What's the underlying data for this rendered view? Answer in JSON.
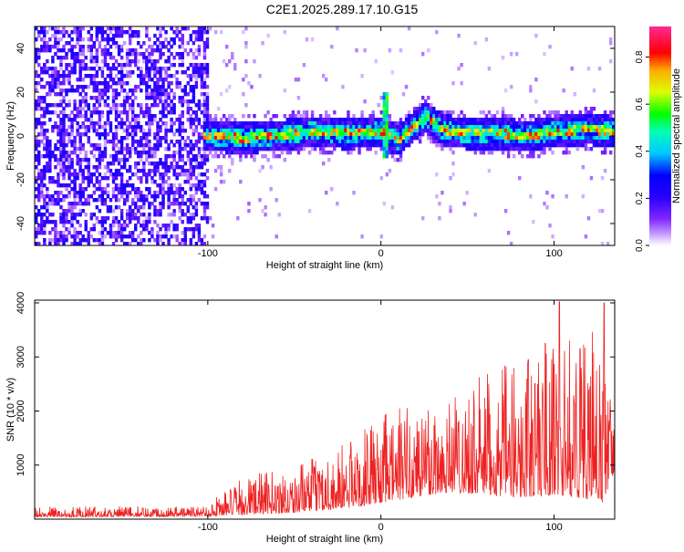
{
  "title": "C2E1.2025.289.17.10.G15",
  "chart_data": [
    {
      "type": "heatmap",
      "xlabel": "Height of straight line (km)",
      "ylabel": "Frequency (Hz)",
      "xlim": [
        -200,
        135
      ],
      "ylim": [
        -50,
        50
      ],
      "xticks": [
        -100,
        0,
        100
      ],
      "yticks": [
        -40,
        -20,
        0,
        20,
        40
      ],
      "colorbar": {
        "label": "Normalized spectral amplitude",
        "range": [
          0,
          0.93
        ],
        "ticks": [
          0.0,
          0.2,
          0.4,
          0.6,
          0.8
        ],
        "colormap": [
          "#ffffff",
          "#a050ff",
          "#6a00ff",
          "#0000ff",
          "#00ffff",
          "#00ff00",
          "#ffff00",
          "#ff0000",
          "#ff33aa"
        ]
      },
      "features": {
        "noise_region_x": [
          -200,
          -100
        ],
        "band_center_hz": [
          {
            "x": -100,
            "hz": 0
          },
          {
            "x": -80,
            "hz": -1
          },
          {
            "x": -60,
            "hz": 0
          },
          {
            "x": -40,
            "hz": 2
          },
          {
            "x": -20,
            "hz": 1
          },
          {
            "x": 0,
            "hz": 2
          },
          {
            "x": 5,
            "hz": 0
          },
          {
            "x": 10,
            "hz": -2
          },
          {
            "x": 20,
            "hz": 5
          },
          {
            "x": 26,
            "hz": 9
          },
          {
            "x": 35,
            "hz": 3
          },
          {
            "x": 50,
            "hz": 1
          },
          {
            "x": 70,
            "hz": 1
          },
          {
            "x": 85,
            "hz": 0
          },
          {
            "x": 100,
            "hz": 2
          },
          {
            "x": 120,
            "hz": 3
          },
          {
            "x": 135,
            "hz": 2
          }
        ],
        "spike_x": 3
      }
    },
    {
      "type": "line",
      "xlabel": "Height of straight line (km)",
      "ylabel": "SNR (10 * v/v)",
      "xlim": [
        -200,
        135
      ],
      "ylim": [
        0,
        4050
      ],
      "xticks": [
        -100,
        0,
        100
      ],
      "yticks": [
        1000,
        2000,
        3000,
        4000
      ],
      "color": "#ee2222",
      "envelope": [
        {
          "x": -200,
          "base": 40,
          "peak": 230
        },
        {
          "x": -100,
          "base": 50,
          "peak": 250
        },
        {
          "x": -95,
          "base": 60,
          "peak": 450
        },
        {
          "x": -75,
          "base": 90,
          "peak": 850
        },
        {
          "x": -50,
          "base": 120,
          "peak": 950
        },
        {
          "x": -20,
          "base": 200,
          "peak": 1450
        },
        {
          "x": 0,
          "base": 300,
          "peak": 1900
        },
        {
          "x": 20,
          "base": 400,
          "peak": 2300
        },
        {
          "x": 40,
          "base": 500,
          "peak": 2400
        },
        {
          "x": 60,
          "base": 450,
          "peak": 2700
        },
        {
          "x": 80,
          "base": 400,
          "peak": 2950
        },
        {
          "x": 100,
          "base": 450,
          "peak": 3300
        },
        {
          "x": 115,
          "base": 400,
          "peak": 3400
        },
        {
          "x": 128,
          "base": 300,
          "peak": 3600
        },
        {
          "x": 135,
          "base": 900,
          "peak": 1800
        }
      ],
      "peaks": [
        {
          "x": 103,
          "y": 4020
        },
        {
          "x": 129,
          "y": 4000
        },
        {
          "x": 115,
          "y": 3150
        },
        {
          "x": 95,
          "y": 3250
        },
        {
          "x": 85,
          "y": 2950
        }
      ]
    }
  ]
}
